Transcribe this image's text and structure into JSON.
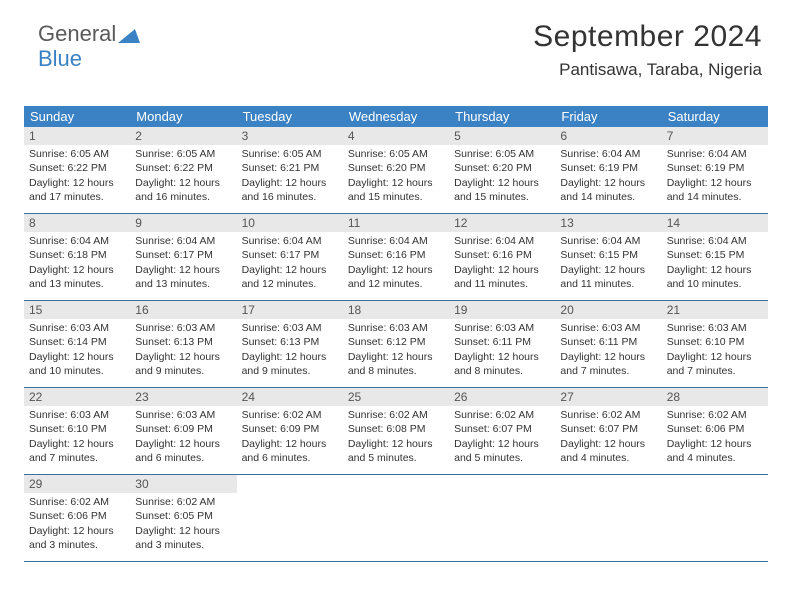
{
  "logo": {
    "word1": "General",
    "word2": "Blue"
  },
  "title": "September 2024",
  "location": "Pantisawa, Taraba, Nigeria",
  "colors": {
    "header_bg": "#3b82c4",
    "header_text": "#ffffff",
    "daynum_bg": "#e8e8e8",
    "row_border": "#3b6fa0",
    "body_text": "#333333"
  },
  "weekdays": [
    "Sunday",
    "Monday",
    "Tuesday",
    "Wednesday",
    "Thursday",
    "Friday",
    "Saturday"
  ],
  "weeks": [
    [
      {
        "n": "1",
        "sr": "Sunrise: 6:05 AM",
        "ss": "Sunset: 6:22 PM",
        "d1": "Daylight: 12 hours",
        "d2": "and 17 minutes."
      },
      {
        "n": "2",
        "sr": "Sunrise: 6:05 AM",
        "ss": "Sunset: 6:22 PM",
        "d1": "Daylight: 12 hours",
        "d2": "and 16 minutes."
      },
      {
        "n": "3",
        "sr": "Sunrise: 6:05 AM",
        "ss": "Sunset: 6:21 PM",
        "d1": "Daylight: 12 hours",
        "d2": "and 16 minutes."
      },
      {
        "n": "4",
        "sr": "Sunrise: 6:05 AM",
        "ss": "Sunset: 6:20 PM",
        "d1": "Daylight: 12 hours",
        "d2": "and 15 minutes."
      },
      {
        "n": "5",
        "sr": "Sunrise: 6:05 AM",
        "ss": "Sunset: 6:20 PM",
        "d1": "Daylight: 12 hours",
        "d2": "and 15 minutes."
      },
      {
        "n": "6",
        "sr": "Sunrise: 6:04 AM",
        "ss": "Sunset: 6:19 PM",
        "d1": "Daylight: 12 hours",
        "d2": "and 14 minutes."
      },
      {
        "n": "7",
        "sr": "Sunrise: 6:04 AM",
        "ss": "Sunset: 6:19 PM",
        "d1": "Daylight: 12 hours",
        "d2": "and 14 minutes."
      }
    ],
    [
      {
        "n": "8",
        "sr": "Sunrise: 6:04 AM",
        "ss": "Sunset: 6:18 PM",
        "d1": "Daylight: 12 hours",
        "d2": "and 13 minutes."
      },
      {
        "n": "9",
        "sr": "Sunrise: 6:04 AM",
        "ss": "Sunset: 6:17 PM",
        "d1": "Daylight: 12 hours",
        "d2": "and 13 minutes."
      },
      {
        "n": "10",
        "sr": "Sunrise: 6:04 AM",
        "ss": "Sunset: 6:17 PM",
        "d1": "Daylight: 12 hours",
        "d2": "and 12 minutes."
      },
      {
        "n": "11",
        "sr": "Sunrise: 6:04 AM",
        "ss": "Sunset: 6:16 PM",
        "d1": "Daylight: 12 hours",
        "d2": "and 12 minutes."
      },
      {
        "n": "12",
        "sr": "Sunrise: 6:04 AM",
        "ss": "Sunset: 6:16 PM",
        "d1": "Daylight: 12 hours",
        "d2": "and 11 minutes."
      },
      {
        "n": "13",
        "sr": "Sunrise: 6:04 AM",
        "ss": "Sunset: 6:15 PM",
        "d1": "Daylight: 12 hours",
        "d2": "and 11 minutes."
      },
      {
        "n": "14",
        "sr": "Sunrise: 6:04 AM",
        "ss": "Sunset: 6:15 PM",
        "d1": "Daylight: 12 hours",
        "d2": "and 10 minutes."
      }
    ],
    [
      {
        "n": "15",
        "sr": "Sunrise: 6:03 AM",
        "ss": "Sunset: 6:14 PM",
        "d1": "Daylight: 12 hours",
        "d2": "and 10 minutes."
      },
      {
        "n": "16",
        "sr": "Sunrise: 6:03 AM",
        "ss": "Sunset: 6:13 PM",
        "d1": "Daylight: 12 hours",
        "d2": "and 9 minutes."
      },
      {
        "n": "17",
        "sr": "Sunrise: 6:03 AM",
        "ss": "Sunset: 6:13 PM",
        "d1": "Daylight: 12 hours",
        "d2": "and 9 minutes."
      },
      {
        "n": "18",
        "sr": "Sunrise: 6:03 AM",
        "ss": "Sunset: 6:12 PM",
        "d1": "Daylight: 12 hours",
        "d2": "and 8 minutes."
      },
      {
        "n": "19",
        "sr": "Sunrise: 6:03 AM",
        "ss": "Sunset: 6:11 PM",
        "d1": "Daylight: 12 hours",
        "d2": "and 8 minutes."
      },
      {
        "n": "20",
        "sr": "Sunrise: 6:03 AM",
        "ss": "Sunset: 6:11 PM",
        "d1": "Daylight: 12 hours",
        "d2": "and 7 minutes."
      },
      {
        "n": "21",
        "sr": "Sunrise: 6:03 AM",
        "ss": "Sunset: 6:10 PM",
        "d1": "Daylight: 12 hours",
        "d2": "and 7 minutes."
      }
    ],
    [
      {
        "n": "22",
        "sr": "Sunrise: 6:03 AM",
        "ss": "Sunset: 6:10 PM",
        "d1": "Daylight: 12 hours",
        "d2": "and 7 minutes."
      },
      {
        "n": "23",
        "sr": "Sunrise: 6:03 AM",
        "ss": "Sunset: 6:09 PM",
        "d1": "Daylight: 12 hours",
        "d2": "and 6 minutes."
      },
      {
        "n": "24",
        "sr": "Sunrise: 6:02 AM",
        "ss": "Sunset: 6:09 PM",
        "d1": "Daylight: 12 hours",
        "d2": "and 6 minutes."
      },
      {
        "n": "25",
        "sr": "Sunrise: 6:02 AM",
        "ss": "Sunset: 6:08 PM",
        "d1": "Daylight: 12 hours",
        "d2": "and 5 minutes."
      },
      {
        "n": "26",
        "sr": "Sunrise: 6:02 AM",
        "ss": "Sunset: 6:07 PM",
        "d1": "Daylight: 12 hours",
        "d2": "and 5 minutes."
      },
      {
        "n": "27",
        "sr": "Sunrise: 6:02 AM",
        "ss": "Sunset: 6:07 PM",
        "d1": "Daylight: 12 hours",
        "d2": "and 4 minutes."
      },
      {
        "n": "28",
        "sr": "Sunrise: 6:02 AM",
        "ss": "Sunset: 6:06 PM",
        "d1": "Daylight: 12 hours",
        "d2": "and 4 minutes."
      }
    ],
    [
      {
        "n": "29",
        "sr": "Sunrise: 6:02 AM",
        "ss": "Sunset: 6:06 PM",
        "d1": "Daylight: 12 hours",
        "d2": "and 3 minutes."
      },
      {
        "n": "30",
        "sr": "Sunrise: 6:02 AM",
        "ss": "Sunset: 6:05 PM",
        "d1": "Daylight: 12 hours",
        "d2": "and 3 minutes."
      },
      {
        "empty": true
      },
      {
        "empty": true
      },
      {
        "empty": true
      },
      {
        "empty": true
      },
      {
        "empty": true
      }
    ]
  ]
}
